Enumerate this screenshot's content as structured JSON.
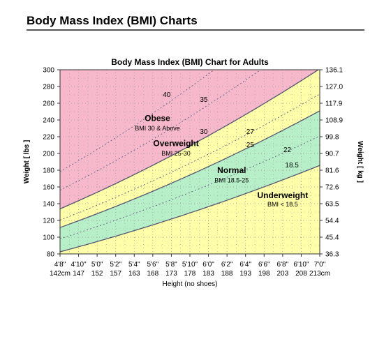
{
  "page": {
    "title": "Body Mass Index (BMI) Charts"
  },
  "chart_data": {
    "type": "area",
    "title": "Body Mass Index (BMI) Chart for Adults",
    "xlabel": "Height (no shoes)",
    "ylabel": "Weight [ lbs ]",
    "ylabel_right": "Weight [ kg ]",
    "x_unit": "inches",
    "xlim": [
      56,
      84
    ],
    "ylim": [
      80,
      300
    ],
    "grid": "dotted",
    "x_ticks": [
      {
        "x": 56,
        "ft": "4'8\"",
        "cm": "142cm"
      },
      {
        "x": 58,
        "ft": "4'10\"",
        "cm": "147"
      },
      {
        "x": 60,
        "ft": "5'0\"",
        "cm": "152"
      },
      {
        "x": 62,
        "ft": "5'2\"",
        "cm": "157"
      },
      {
        "x": 64,
        "ft": "5'4\"",
        "cm": "163"
      },
      {
        "x": 66,
        "ft": "5'6\"",
        "cm": "168"
      },
      {
        "x": 68,
        "ft": "5'8\"",
        "cm": "173"
      },
      {
        "x": 70,
        "ft": "5'10\"",
        "cm": "178"
      },
      {
        "x": 72,
        "ft": "6'0\"",
        "cm": "183"
      },
      {
        "x": 74,
        "ft": "6'2\"",
        "cm": "188"
      },
      {
        "x": 76,
        "ft": "6'4\"",
        "cm": "193"
      },
      {
        "x": 78,
        "ft": "6'6\"",
        "cm": "198"
      },
      {
        "x": 80,
        "ft": "6'8\"",
        "cm": "203"
      },
      {
        "x": 82,
        "ft": "6'10\"",
        "cm": "208"
      },
      {
        "x": 84,
        "ft": "7'0\"",
        "cm": "213cm"
      }
    ],
    "y_ticks": [
      80,
      100,
      120,
      140,
      160,
      180,
      200,
      220,
      240,
      260,
      280,
      300
    ],
    "y_ticks_right": [
      {
        "y": 80,
        "label": "36.3"
      },
      {
        "y": 100,
        "label": "45.4"
      },
      {
        "y": 120,
        "label": "54.4"
      },
      {
        "y": 140,
        "label": "63.5"
      },
      {
        "y": 160,
        "label": "72.6"
      },
      {
        "y": 180,
        "label": "81.6"
      },
      {
        "y": 200,
        "label": "90.7"
      },
      {
        "y": 220,
        "label": "99.8"
      },
      {
        "y": 240,
        "label": "108.9"
      },
      {
        "y": 260,
        "label": "117.9"
      },
      {
        "y": 280,
        "label": "127.0"
      },
      {
        "y": 300,
        "label": "136.1"
      }
    ],
    "boundaries": [
      {
        "bmi": 18.5,
        "style": "solid",
        "label": "18.5",
        "label_x": 81,
        "label_y": 186
      },
      {
        "bmi": 25,
        "style": "solid",
        "label": "25",
        "label_x": 76.5,
        "label_y": 210
      },
      {
        "bmi": 30,
        "style": "solid",
        "label": "30",
        "label_x": 71.5,
        "label_y": 226
      }
    ],
    "guides": [
      {
        "bmi": 22,
        "style": "dotted",
        "label": "22",
        "label_x": 80.5,
        "label_y": 204
      },
      {
        "bmi": 27,
        "style": "dotted",
        "label": "27",
        "label_x": 76.5,
        "label_y": 226
      },
      {
        "bmi": 35,
        "style": "dotted",
        "label": "35",
        "label_x": 71.5,
        "label_y": 264
      },
      {
        "bmi": 40,
        "style": "dotted",
        "label": "40",
        "label_x": 67.5,
        "label_y": 270
      }
    ],
    "zones": [
      {
        "name": "Underweight",
        "range": "BMI < 18.5",
        "color": "#ffffaa",
        "label_x": 80,
        "label_y": 150,
        "sub_y": 139
      },
      {
        "name": "Normal",
        "range": "BMI 18.5-25",
        "color": "#b7f0c8",
        "label_x": 74.5,
        "label_y": 180,
        "sub_y": 168
      },
      {
        "name": "Overweight",
        "range": "BMI 25-30",
        "color": "#ffffaa",
        "label_x": 68.5,
        "label_y": 212,
        "sub_y": 200
      },
      {
        "name": "Obese",
        "range": "BMI 30 & Above",
        "color": "#f7b8cb",
        "label_x": 66.5,
        "label_y": 242,
        "sub_y": 230
      }
    ],
    "colors": {
      "underweight": "#ffffaa",
      "normal": "#b7f0c8",
      "overweight": "#ffffaa",
      "obese": "#f7b8cb",
      "boundary": "#555570",
      "guide": "#6a6a88",
      "grid": "#a0a0a0"
    }
  }
}
